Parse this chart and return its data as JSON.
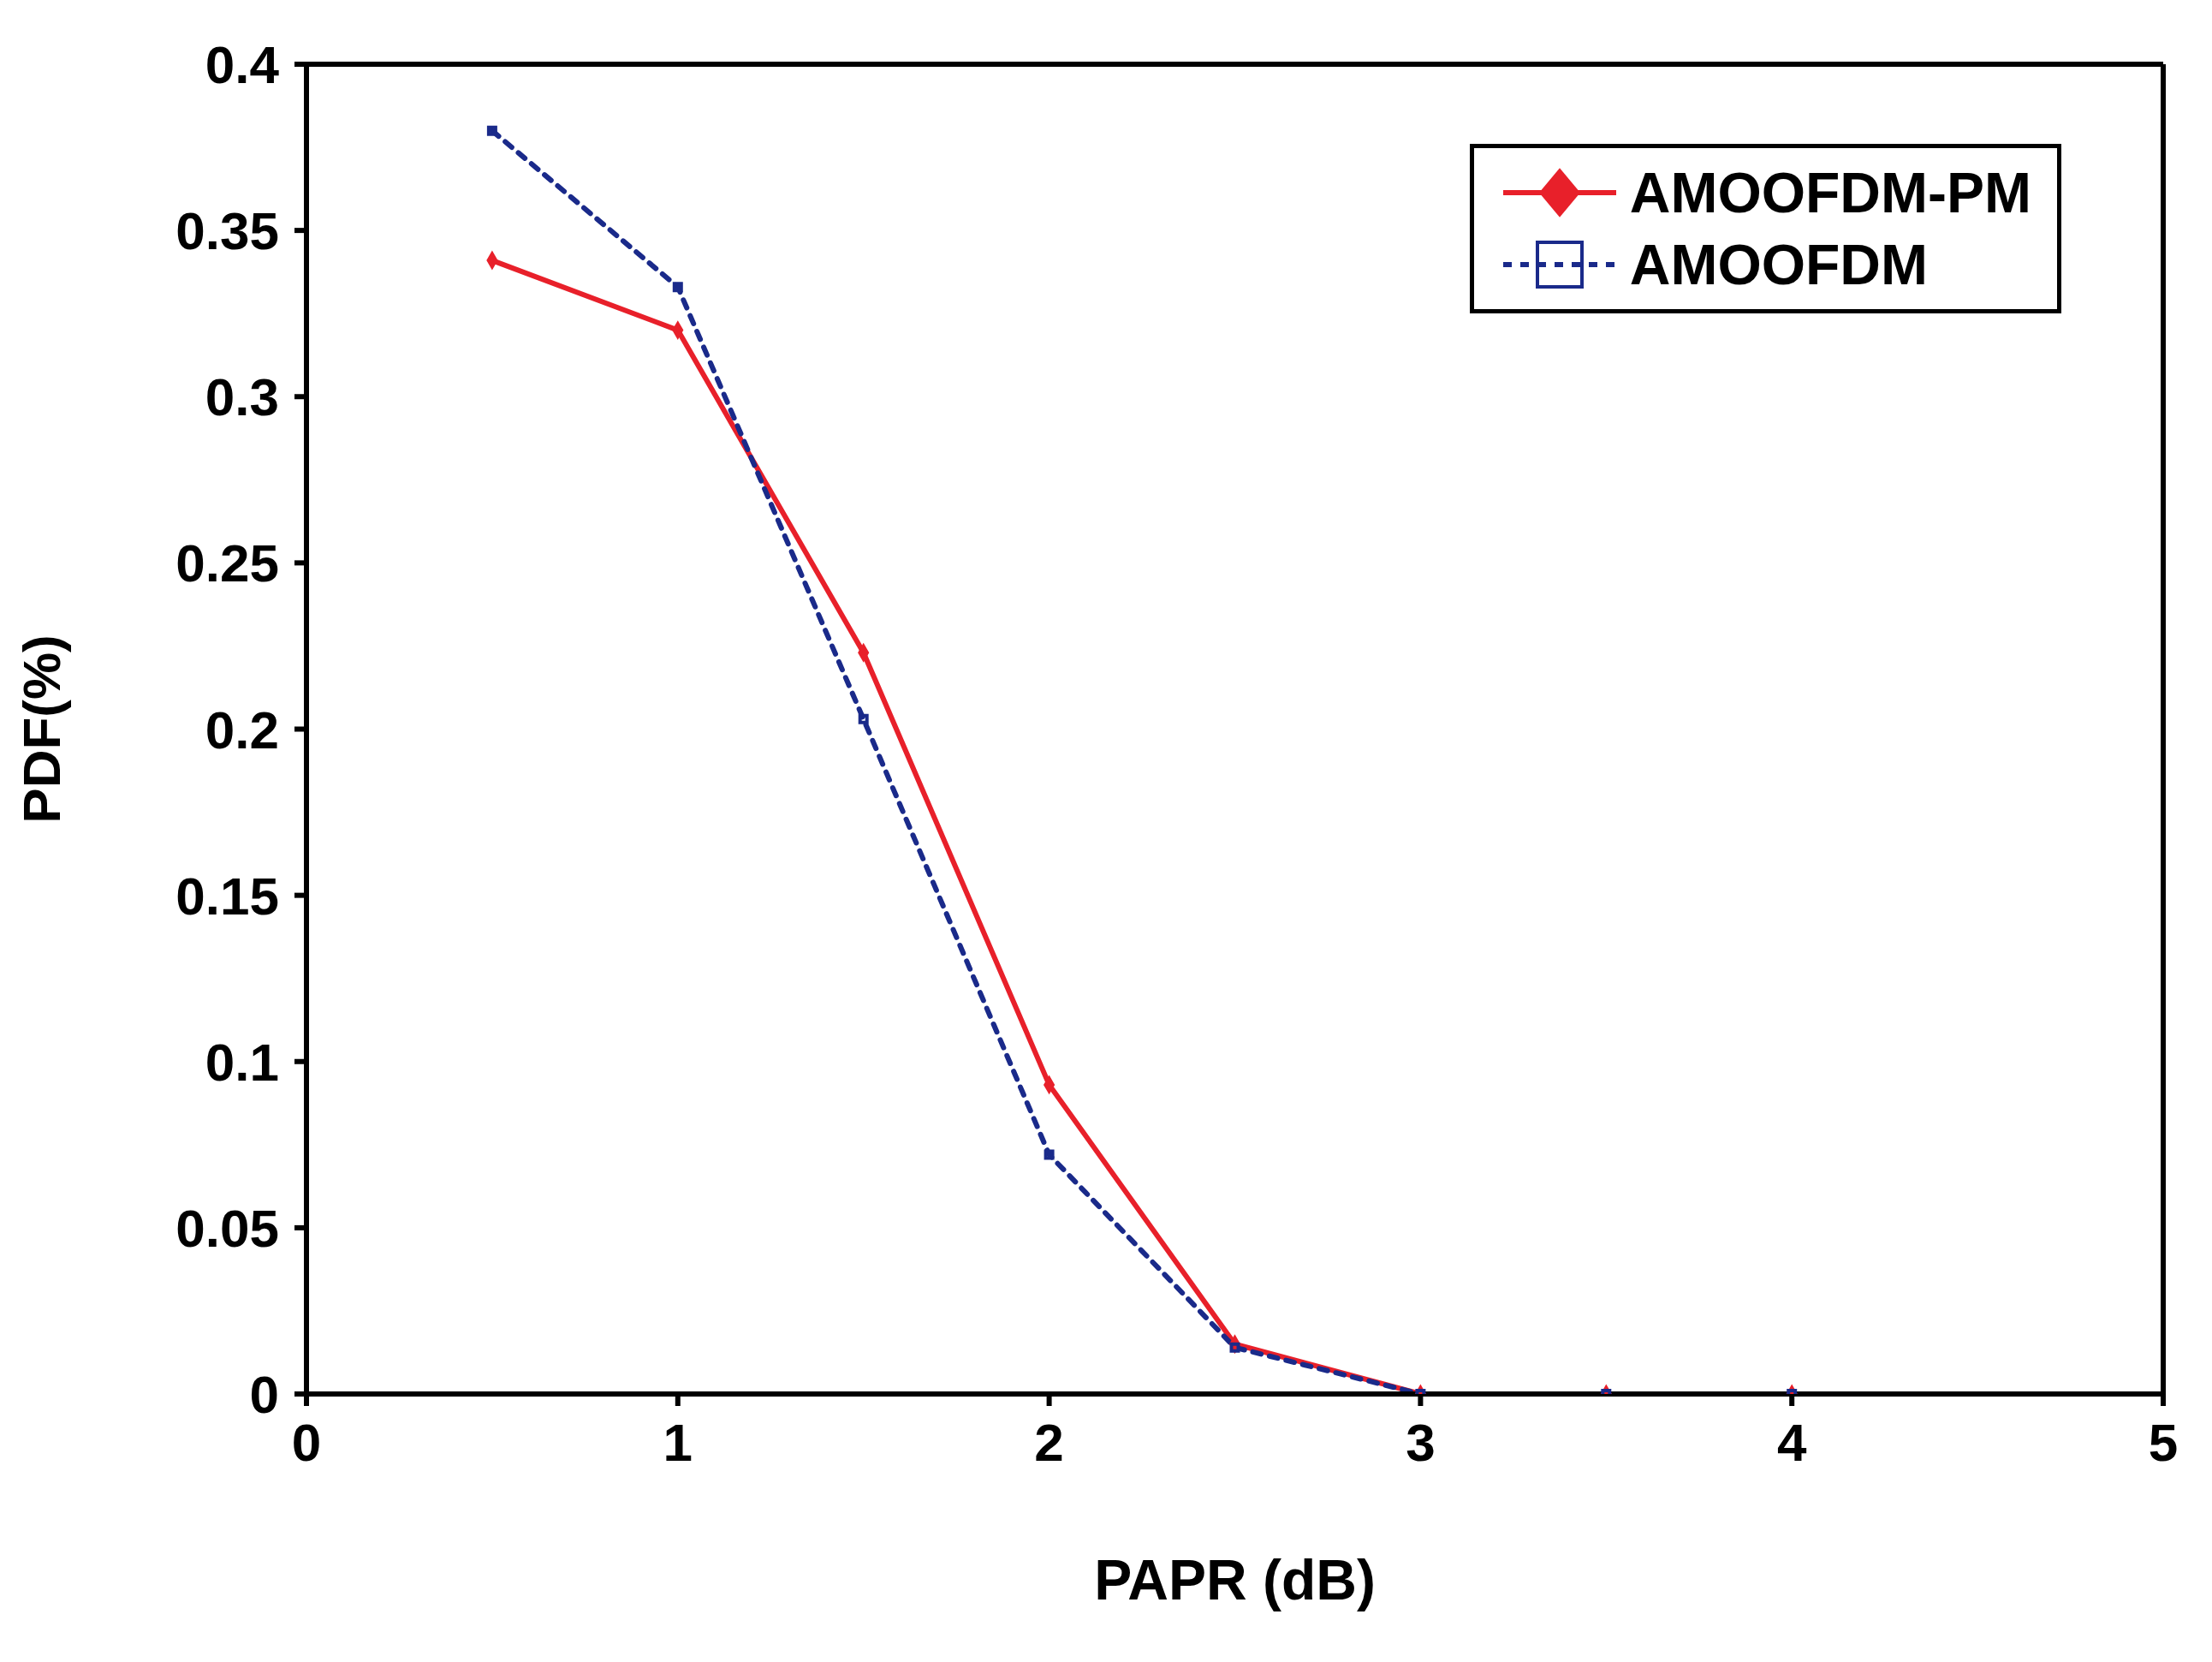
{
  "chart_data": {
    "type": "line",
    "xlabel": "PAPR (dB)",
    "ylabel": "PDF(%)",
    "x": [
      0.5,
      1,
      1.5,
      2,
      2.5,
      3,
      3.5,
      4
    ],
    "series": [
      {
        "name": "AMOOFDM-PM",
        "color": "#e8202a",
        "values": [
          0.341,
          0.32,
          0.223,
          0.093,
          0.015,
          0,
          0,
          0
        ],
        "marker": "diamond",
        "line_style": "solid"
      },
      {
        "name": "AMOOFDM",
        "color": "#1a2a8a",
        "values": [
          0.38,
          0.333,
          0.203,
          0.072,
          0.014,
          0,
          0,
          0
        ],
        "marker": "square",
        "line_style": "dashed"
      }
    ],
    "xlim": [
      0,
      5
    ],
    "xticks": [
      0,
      1,
      2,
      3,
      4,
      5
    ],
    "ylim": [
      0,
      0.4
    ],
    "yticks": [
      0,
      0.05,
      0.1,
      0.15,
      0.2,
      0.25,
      0.3,
      0.35,
      0.4
    ],
    "grid": false,
    "legend": "top right"
  }
}
